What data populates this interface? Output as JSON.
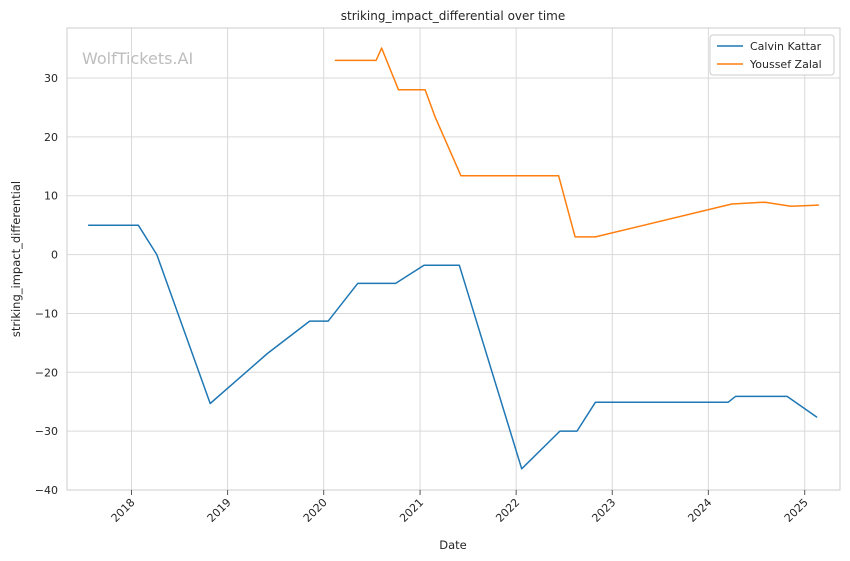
{
  "chart_data": {
    "type": "line",
    "title": "striking_impact_differential over time",
    "xlabel": "Date",
    "ylabel": "striking_impact_differential",
    "watermark": "WolfTickets.AI",
    "xlim": [
      "2017-05-01",
      "2025-05-15"
    ],
    "ylim": [
      -40,
      38.5
    ],
    "yticks": [
      -40,
      -30,
      -20,
      -10,
      0,
      10,
      20,
      30
    ],
    "ytick_labels": [
      "−40",
      "−30",
      "−20",
      "−10",
      "0",
      "10",
      "20",
      "30"
    ],
    "xticks": [
      "2018-01-01",
      "2019-01-01",
      "2020-01-01",
      "2021-01-01",
      "2022-01-01",
      "2023-01-01",
      "2024-01-01",
      "2025-01-01"
    ],
    "xtick_labels": [
      "2018",
      "2019",
      "2020",
      "2021",
      "2022",
      "2023",
      "2024",
      "2025"
    ],
    "grid": true,
    "legend_position": "top-right",
    "series": [
      {
        "name": "Calvin Kattar",
        "color": "#1f77b4",
        "points": [
          [
            "2017-07-22",
            5.0
          ],
          [
            "2018-01-27",
            5.0
          ],
          [
            "2018-04-07",
            0.0
          ],
          [
            "2018-10-27",
            -25.3
          ],
          [
            "2019-06-01",
            -16.8
          ],
          [
            "2019-11-09",
            -11.3
          ],
          [
            "2020-01-18",
            -11.3
          ],
          [
            "2020-05-09",
            -4.9
          ],
          [
            "2020-09-30",
            -4.9
          ],
          [
            "2021-01-16",
            -1.8
          ],
          [
            "2021-05-30",
            -1.8
          ],
          [
            "2022-01-22",
            -36.4
          ],
          [
            "2022-06-16",
            -30.0
          ],
          [
            "2022-08-20",
            -30.0
          ],
          [
            "2022-10-29",
            -25.1
          ],
          [
            "2024-03-16",
            -25.1
          ],
          [
            "2024-04-13",
            -24.1
          ],
          [
            "2024-10-26",
            -24.1
          ],
          [
            "2025-02-15",
            -27.6
          ]
        ]
      },
      {
        "name": "Youssef Zalal",
        "color": "#ff7f0e",
        "points": [
          [
            "2020-02-15",
            33.0
          ],
          [
            "2020-07-18",
            33.0
          ],
          [
            "2020-08-08",
            35.1
          ],
          [
            "2020-10-11",
            28.0
          ],
          [
            "2021-01-20",
            28.0
          ],
          [
            "2021-02-27",
            23.4
          ],
          [
            "2021-06-05",
            13.4
          ],
          [
            "2022-06-11",
            13.4
          ],
          [
            "2022-08-13",
            3.0
          ],
          [
            "2022-10-29",
            3.0
          ],
          [
            "2024-03-30",
            8.6
          ],
          [
            "2024-08-03",
            8.9
          ],
          [
            "2024-11-09",
            8.2
          ],
          [
            "2025-02-22",
            8.4
          ]
        ]
      }
    ]
  }
}
